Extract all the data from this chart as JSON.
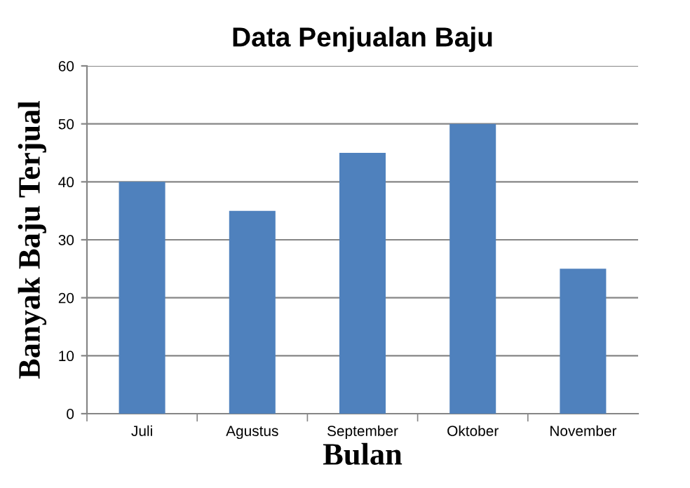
{
  "chart_data": {
    "type": "bar",
    "title": "Data Penjualan Baju",
    "xlabel": "Bulan",
    "ylabel": "Banyak Baju Terjual",
    "categories": [
      "Juli",
      "Agustus",
      "September",
      "Oktober",
      "November"
    ],
    "values": [
      40,
      35,
      45,
      50,
      25
    ],
    "color": "#4f81bd",
    "ylim": [
      0,
      60
    ],
    "yticks": [
      0,
      10,
      20,
      30,
      40,
      50,
      60
    ],
    "grid": "y"
  }
}
